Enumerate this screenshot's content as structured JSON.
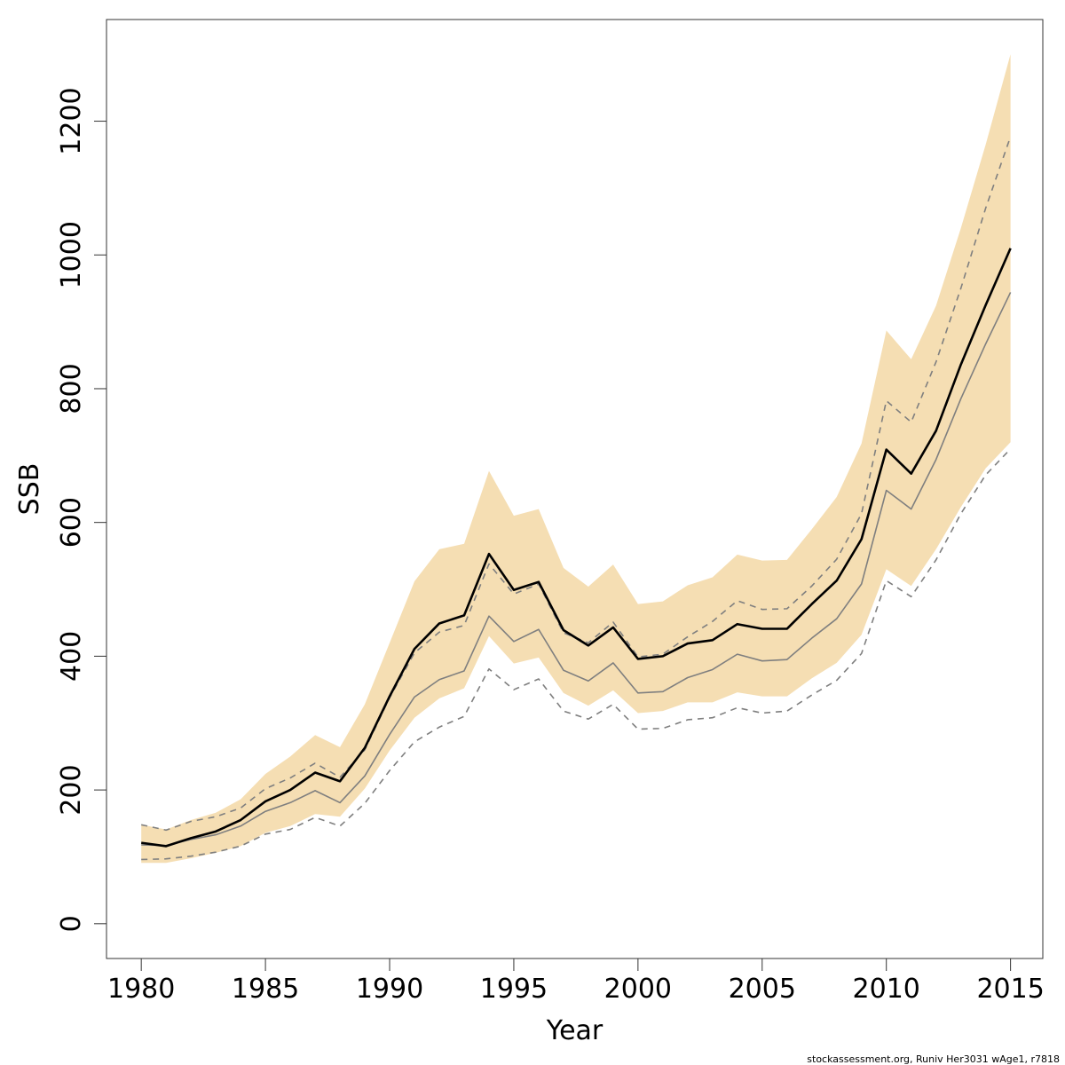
{
  "chart_data": {
    "type": "line",
    "xlabel": "Year",
    "ylabel": "SSB",
    "xlim": [
      1978.6,
      2016.3
    ],
    "ylim": [
      -52,
      1352
    ],
    "x_ticks": [
      1980,
      1985,
      1990,
      1995,
      2000,
      2005,
      2010,
      2015
    ],
    "y_ticks": [
      0,
      200,
      400,
      600,
      800,
      1000,
      1200
    ],
    "x_tick_labels": [
      "1980",
      "1985",
      "1990",
      "1995",
      "2000",
      "2005",
      "2010",
      "2015"
    ],
    "y_tick_labels": [
      "0",
      "200",
      "400",
      "600",
      "800",
      "1000",
      "1200"
    ],
    "grid": false,
    "legend": "none",
    "x": [
      1980,
      1981,
      1982,
      1983,
      1984,
      1985,
      1986,
      1987,
      1988,
      1989,
      1990,
      1991,
      1992,
      1993,
      1994,
      1995,
      1996,
      1997,
      1998,
      1999,
      2000,
      2001,
      2002,
      2003,
      2004,
      2005,
      2006,
      2007,
      2008,
      2009,
      2010,
      2011,
      2012,
      2013,
      2014,
      2015
    ],
    "band": {
      "upper": [
        148,
        141,
        155,
        166,
        186,
        224,
        250,
        282,
        264,
        328,
        420,
        512,
        560,
        568,
        677,
        610,
        620,
        532,
        504,
        537,
        478,
        482,
        506,
        518,
        552,
        543,
        544,
        590,
        638,
        718,
        887,
        844,
        924,
        1040,
        1165,
        1300
      ],
      "lower": [
        91,
        91,
        98,
        106,
        116,
        136,
        146,
        164,
        160,
        202,
        259,
        308,
        337,
        352,
        430,
        389,
        398,
        345,
        326,
        349,
        315,
        318,
        331,
        331,
        346,
        340,
        340,
        367,
        390,
        432,
        530,
        505,
        560,
        623,
        681,
        720
      ],
      "color": "#f5deb3"
    },
    "series": [
      {
        "values": [
          121,
          116,
          128,
          138,
          155,
          183,
          200,
          226,
          213,
          263,
          340,
          411,
          449,
          461,
          553,
          499,
          511,
          439,
          416,
          443,
          396,
          400,
          419,
          424,
          448,
          441,
          441,
          478,
          513,
          575,
          709,
          673,
          737,
          836,
          925,
          1010
        ],
        "color": "#000000",
        "style": "solid"
      },
      {
        "values": [
          118,
          117,
          126,
          133,
          146,
          168,
          181,
          199,
          181,
          221,
          283,
          339,
          365,
          378,
          460,
          422,
          440,
          379,
          363,
          390,
          345,
          347,
          368,
          380,
          403,
          393,
          395,
          427,
          456,
          508,
          648,
          620,
          694,
          785,
          867,
          944
        ],
        "color": "#7f7f7f",
        "style": "solid"
      },
      {
        "values": [
          148,
          140,
          153,
          160,
          173,
          202,
          218,
          240,
          219,
          260,
          338,
          405,
          436,
          446,
          538,
          493,
          508,
          435,
          420,
          451,
          399,
          403,
          429,
          452,
          483,
          470,
          471,
          505,
          545,
          613,
          782,
          750,
          840,
          950,
          1070,
          1177
        ],
        "color": "#7f7f7f",
        "style": "dashed"
      },
      {
        "values": [
          96,
          97,
          101,
          107,
          116,
          134,
          141,
          159,
          146,
          180,
          229,
          272,
          294,
          310,
          381,
          350,
          366,
          318,
          306,
          328,
          291,
          292,
          305,
          308,
          323,
          315,
          318,
          342,
          364,
          404,
          513,
          489,
          544,
          613,
          671,
          710
        ],
        "color": "#7f7f7f",
        "style": "dashed"
      }
    ]
  },
  "footer": {
    "credit": "stockassessment.org, Runiv  Her3031  wAge1, r7818"
  }
}
